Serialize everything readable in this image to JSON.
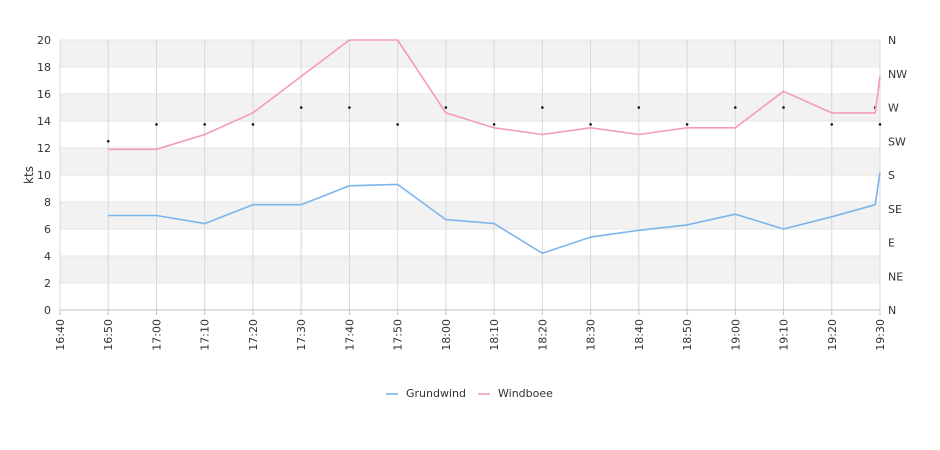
{
  "chart_data": {
    "type": "line",
    "xlabel": "",
    "ylabel": "kts",
    "ylim": [
      0,
      20
    ],
    "y_ticks": [
      "0",
      "2",
      "4",
      "6",
      "8",
      "10",
      "12",
      "14",
      "16",
      "18",
      "20"
    ],
    "x_ticks": [
      "16:40",
      "16:50",
      "17:00",
      "17:10",
      "17:20",
      "17:30",
      "17:40",
      "17:50",
      "18:00",
      "18:10",
      "18:20",
      "18:30",
      "18:40",
      "18:50",
      "19:00",
      "19:10",
      "19:20",
      "19:30"
    ],
    "y2_ticks": [
      "N",
      "NE",
      "E",
      "SE",
      "S",
      "SW",
      "W",
      "NW",
      "N"
    ],
    "grid": true,
    "legend_position": "bottom-center",
    "series": [
      {
        "name": "Grundwind",
        "color": "#7cb5ec",
        "points": [
          [
            "16:50",
            7.0
          ],
          [
            "17:00",
            7.0
          ],
          [
            "17:10",
            6.4
          ],
          [
            "17:20",
            7.8
          ],
          [
            "17:30",
            7.8
          ],
          [
            "17:40",
            9.2
          ],
          [
            "17:50",
            9.3
          ],
          [
            "18:00",
            6.7
          ],
          [
            "18:10",
            6.4
          ],
          [
            "18:20",
            4.2
          ],
          [
            "18:30",
            5.4
          ],
          [
            "18:40",
            5.9
          ],
          [
            "18:50",
            6.3
          ],
          [
            "19:00",
            7.1
          ],
          [
            "19:10",
            6.0
          ],
          [
            "19:20",
            6.9
          ],
          [
            "19:29",
            7.8
          ],
          [
            "19:30",
            10.2
          ]
        ]
      },
      {
        "name": "Windboee",
        "color": "#f49ac1",
        "points": [
          [
            "16:50",
            11.9
          ],
          [
            "17:00",
            11.9
          ],
          [
            "17:10",
            13.0
          ],
          [
            "17:20",
            14.6
          ],
          [
            "17:30",
            17.3
          ],
          [
            "17:40",
            20.0
          ],
          [
            "17:50",
            20.0
          ],
          [
            "18:00",
            14.6
          ],
          [
            "18:10",
            13.5
          ],
          [
            "18:20",
            13.0
          ],
          [
            "18:30",
            13.5
          ],
          [
            "18:40",
            13.0
          ],
          [
            "18:50",
            13.5
          ],
          [
            "19:00",
            13.5
          ],
          [
            "19:10",
            16.2
          ],
          [
            "19:20",
            14.6
          ],
          [
            "19:29",
            14.6
          ],
          [
            "19:30",
            17.3
          ]
        ]
      }
    ],
    "direction_points": [
      [
        "16:50",
        12.5
      ],
      [
        "17:00",
        13.75
      ],
      [
        "17:10",
        13.75
      ],
      [
        "17:20",
        13.75
      ],
      [
        "17:30",
        15.0
      ],
      [
        "17:40",
        15.0
      ],
      [
        "17:50",
        13.75
      ],
      [
        "18:00",
        15.0
      ],
      [
        "18:10",
        13.75
      ],
      [
        "18:20",
        15.0
      ],
      [
        "18:30",
        13.75
      ],
      [
        "18:40",
        15.0
      ],
      [
        "18:50",
        13.75
      ],
      [
        "19:00",
        15.0
      ],
      [
        "19:10",
        15.0
      ],
      [
        "19:20",
        13.75
      ],
      [
        "19:29",
        15.0
      ],
      [
        "19:30",
        13.75
      ]
    ]
  }
}
